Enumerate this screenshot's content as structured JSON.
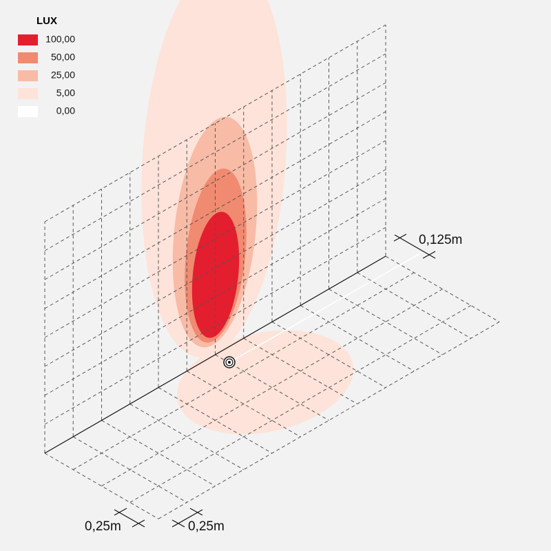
{
  "legend": {
    "title": "LUX",
    "items": [
      {
        "label": "100,00",
        "color": "#e31e2f"
      },
      {
        "label": "50,00",
        "color": "#f08a70"
      },
      {
        "label": "25,00",
        "color": "#f7bba6"
      },
      {
        "label": "5,00",
        "color": "#fde3d9"
      },
      {
        "label": "0,00",
        "color": "#ffffff"
      }
    ]
  },
  "dimensions": {
    "depth": "0,125m",
    "grid_x": "0,25m",
    "grid_y": "0,25m"
  }
}
